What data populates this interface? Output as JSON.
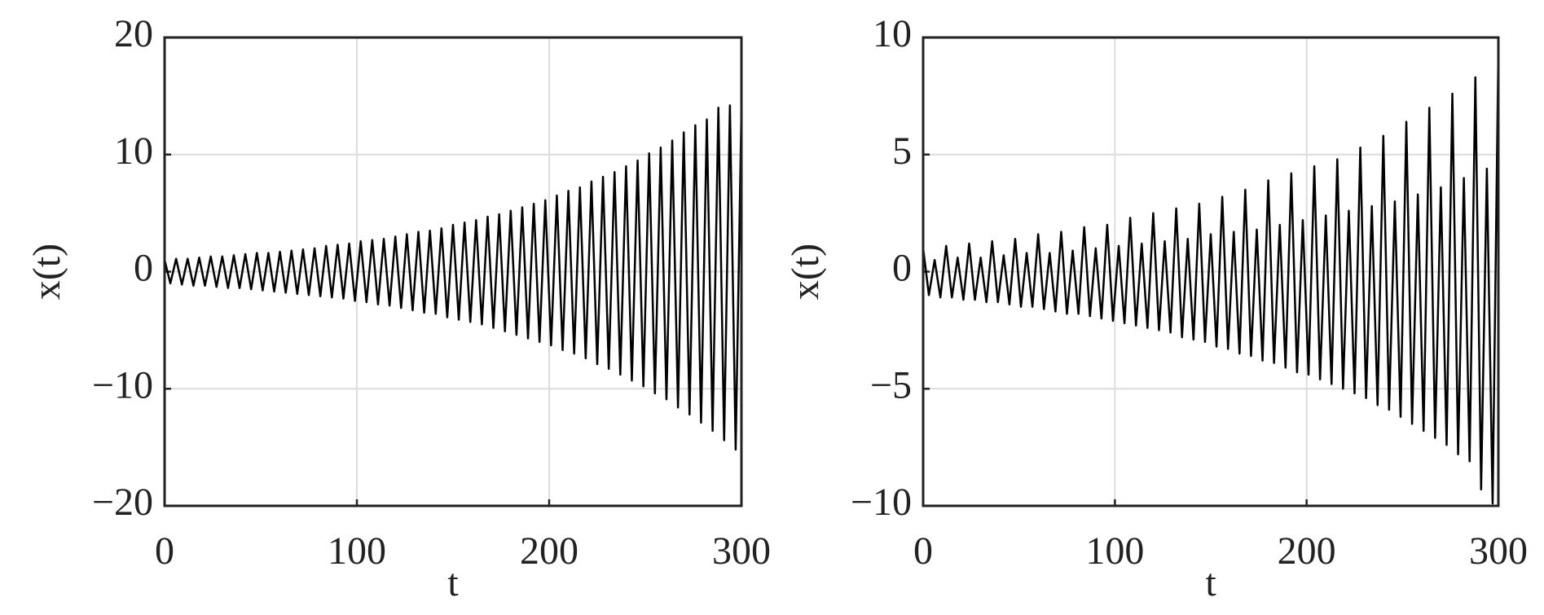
{
  "chart_data": [
    {
      "type": "line",
      "xlabel": "t",
      "ylabel": "x(t)",
      "color": "#000000",
      "grid": true,
      "xlim": [
        0,
        300
      ],
      "xticks": [
        0,
        100,
        200,
        300
      ],
      "ylim": [
        -20,
        20
      ],
      "yticks": [
        {
          "value": -20,
          "label": "−20"
        },
        {
          "value": -10,
          "label": "−10"
        },
        0,
        10,
        20
      ],
      "x": [
        0,
        3,
        6,
        9,
        12,
        15,
        18,
        21,
        24,
        27,
        30,
        33,
        36,
        39,
        42,
        45,
        48,
        51,
        54,
        57,
        60,
        63,
        66,
        69,
        72,
        75,
        78,
        81,
        84,
        87,
        90,
        93,
        96,
        99,
        102,
        105,
        108,
        111,
        114,
        117,
        120,
        123,
        126,
        129,
        132,
        135,
        138,
        141,
        144,
        147,
        150,
        153,
        156,
        159,
        162,
        165,
        168,
        171,
        174,
        177,
        180,
        183,
        186,
        189,
        192,
        195,
        198,
        201,
        204,
        207,
        210,
        213,
        216,
        219,
        222,
        225,
        228,
        231,
        234,
        237,
        240,
        243,
        246,
        249,
        252,
        255,
        258,
        261,
        264,
        267,
        270,
        273,
        276,
        279,
        282,
        285,
        288,
        291,
        294,
        297,
        300
      ],
      "values": [
        1.0,
        -1.0,
        1.1,
        -1.1,
        1.1,
        -1.2,
        1.2,
        -1.2,
        1.3,
        -1.3,
        1.3,
        -1.4,
        1.4,
        -1.4,
        1.5,
        -1.5,
        1.6,
        -1.6,
        1.6,
        -1.7,
        1.7,
        -1.8,
        1.8,
        -1.9,
        1.9,
        -2.0,
        2.0,
        -2.1,
        2.2,
        -2.2,
        2.3,
        -2.3,
        2.4,
        -2.5,
        2.6,
        -2.6,
        2.7,
        -2.8,
        2.8,
        -2.9,
        3.0,
        -3.1,
        3.2,
        -3.3,
        3.4,
        -3.5,
        3.5,
        -3.6,
        3.7,
        -3.9,
        4.0,
        -4.1,
        4.2,
        -4.3,
        4.4,
        -4.5,
        4.7,
        -4.8,
        4.9,
        -5.1,
        5.2,
        -5.4,
        5.5,
        -5.7,
        5.8,
        -6.0,
        6.1,
        -6.3,
        6.5,
        -6.7,
        6.9,
        -7.0,
        7.2,
        -7.4,
        7.7,
        -7.9,
        8.1,
        -8.3,
        8.5,
        -8.8,
        9.0,
        -9.3,
        9.5,
        -9.8,
        10.1,
        -10.4,
        10.6,
        -10.9,
        11.2,
        -11.6,
        11.9,
        -12.2,
        12.5,
        -12.9,
        13.0,
        -13.6,
        14.0,
        -14.4,
        14.2,
        -15.2,
        14.0
      ]
    },
    {
      "type": "line",
      "xlabel": "t",
      "ylabel": "x(t)",
      "color": "#000000",
      "grid": true,
      "xlim": [
        0,
        300
      ],
      "xticks": [
        0,
        100,
        200,
        300
      ],
      "ylim": [
        -10,
        10
      ],
      "yticks": [
        {
          "value": -10,
          "label": "−10"
        },
        {
          "value": -5,
          "label": "−5"
        },
        0,
        5,
        10
      ],
      "x": [
        0,
        3,
        6,
        9,
        12,
        15,
        18,
        21,
        24,
        27,
        30,
        33,
        36,
        39,
        42,
        45,
        48,
        51,
        54,
        57,
        60,
        63,
        66,
        69,
        72,
        75,
        78,
        81,
        84,
        87,
        90,
        93,
        96,
        99,
        102,
        105,
        108,
        111,
        114,
        117,
        120,
        123,
        126,
        129,
        132,
        135,
        138,
        141,
        144,
        147,
        150,
        153,
        156,
        159,
        162,
        165,
        168,
        171,
        174,
        177,
        180,
        183,
        186,
        189,
        192,
        195,
        198,
        201,
        204,
        207,
        210,
        213,
        216,
        219,
        222,
        225,
        228,
        231,
        234,
        237,
        240,
        243,
        246,
        249,
        252,
        255,
        258,
        261,
        264,
        267,
        270,
        273,
        276,
        279,
        282,
        285,
        288,
        291,
        294,
        297,
        300
      ],
      "values": [
        1.0,
        -1.0,
        0.5,
        -1.1,
        1.1,
        -1.1,
        0.6,
        -1.2,
        1.2,
        -1.2,
        0.6,
        -1.3,
        1.3,
        -1.3,
        0.7,
        -1.4,
        1.4,
        -1.5,
        0.8,
        -1.5,
        1.6,
        -1.6,
        0.8,
        -1.7,
        1.7,
        -1.8,
        0.9,
        -1.8,
        1.9,
        -1.9,
        1.0,
        -2.0,
        2.0,
        -2.1,
        1.1,
        -2.2,
        2.3,
        -2.3,
        1.2,
        -2.4,
        2.5,
        -2.5,
        1.3,
        -2.6,
        2.7,
        -2.8,
        1.4,
        -2.9,
        2.9,
        -3.0,
        1.6,
        -3.2,
        3.2,
        -3.3,
        1.7,
        -3.5,
        3.5,
        -3.6,
        1.8,
        -3.8,
        3.9,
        -3.9,
        2.0,
        -4.1,
        4.2,
        -4.3,
        2.2,
        -4.4,
        4.5,
        -4.6,
        2.4,
        -4.8,
        4.8,
        -5.0,
        2.6,
        -5.2,
        5.3,
        -5.4,
        2.8,
        -5.7,
        5.8,
        -5.9,
        3.0,
        -6.2,
        6.4,
        -6.5,
        3.3,
        -6.8,
        7.0,
        -7.1,
        3.6,
        -7.4,
        7.6,
        -7.8,
        4.0,
        -8.1,
        8.3,
        -9.3,
        4.4,
        -9.9,
        9.5
      ]
    }
  ]
}
